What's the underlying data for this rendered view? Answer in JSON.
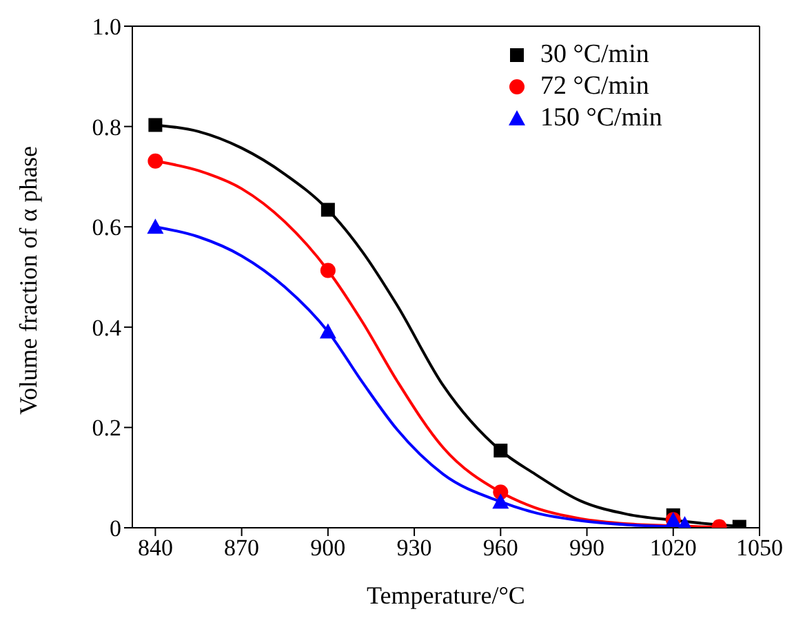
{
  "chart_data": {
    "type": "scatter",
    "xlabel": "Temperature/°C",
    "ylabel": "Volume fraction of α phase",
    "xlim": [
      832,
      1050
    ],
    "xticks": [
      840,
      870,
      900,
      930,
      960,
      990,
      1020,
      1050
    ],
    "ylim": [
      0,
      1
    ],
    "yticks": [
      0,
      0.2,
      0.4,
      0.6,
      0.8,
      {
        "value": 1,
        "label": "1.0"
      }
    ],
    "legend": "top right",
    "series": [
      {
        "name": "30 °C/min",
        "color": "#000000",
        "marker": "square",
        "x": [
          840,
          900,
          960,
          1020,
          1043
        ],
        "values": [
          0.803,
          0.634,
          0.154,
          0.025,
          0.002
        ]
      },
      {
        "name": "72 °C/min",
        "color": "#ff0000",
        "marker": "circle",
        "x": [
          840,
          900,
          960,
          1020,
          1036
        ],
        "values": [
          0.731,
          0.513,
          0.071,
          0.016,
          0.002
        ]
      },
      {
        "name": "150 °C/min",
        "color": "#0000ff",
        "marker": "triangle",
        "x": [
          840,
          900,
          960,
          1020,
          1024
        ],
        "values": [
          0.6,
          0.391,
          0.052,
          0.015,
          0.007
        ]
      },
      {
        "type": "line",
        "color": "#000000",
        "marker": "none",
        "x": [
          840,
          855,
          870,
          885,
          900,
          912,
          924,
          940,
          960,
          972,
          988,
          1004,
          1020,
          1036,
          1043
        ],
        "values": [
          0.803,
          0.79,
          0.757,
          0.705,
          0.634,
          0.55,
          0.444,
          0.284,
          0.154,
          0.107,
          0.053,
          0.027,
          0.015,
          0.006,
          0.003
        ]
      },
      {
        "type": "line",
        "color": "#ff0000",
        "marker": "none",
        "x": [
          840,
          855,
          870,
          885,
          900,
          912,
          924,
          940,
          960,
          972,
          988,
          1004,
          1020,
          1036
        ],
        "values": [
          0.731,
          0.712,
          0.676,
          0.61,
          0.513,
          0.41,
          0.293,
          0.16,
          0.071,
          0.04,
          0.018,
          0.008,
          0.004,
          0.001
        ]
      },
      {
        "type": "line",
        "color": "#0000ff",
        "marker": "none",
        "x": [
          840,
          855,
          870,
          885,
          900,
          912,
          924,
          940,
          960,
          972,
          988,
          1004,
          1024
        ],
        "values": [
          0.6,
          0.58,
          0.542,
          0.48,
          0.391,
          0.29,
          0.196,
          0.107,
          0.052,
          0.03,
          0.014,
          0.006,
          0.002
        ]
      }
    ]
  }
}
